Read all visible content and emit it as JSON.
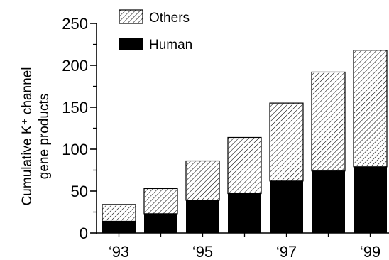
{
  "chart_data": {
    "type": "bar",
    "stacked": true,
    "x": [
      "1993",
      "1994",
      "1995",
      "1996",
      "1997",
      "1998",
      "1999"
    ],
    "tick_labels": [
      {
        "index": 0,
        "label": "‘93"
      },
      {
        "index": 2,
        "label": "‘95"
      },
      {
        "index": 4,
        "label": "‘97"
      },
      {
        "index": 6,
        "label": "‘99"
      }
    ],
    "series": [
      {
        "name": "Human",
        "values": [
          14,
          23,
          39,
          47,
          62,
          74,
          79
        ],
        "fill": "solid",
        "color": "#000000"
      },
      {
        "name": "Others",
        "values": [
          20,
          30,
          47,
          67,
          93,
          118,
          139
        ],
        "fill": "hatched",
        "color": "#000000"
      }
    ],
    "ylabel_lines": [
      "Cumulative K⁺ channel",
      "gene products"
    ],
    "ylim": [
      0,
      250
    ],
    "yticks": [
      0,
      50,
      100,
      150,
      200,
      250
    ],
    "legend": {
      "placement": "top-left",
      "entries": [
        "Others",
        "Human"
      ]
    },
    "grid": false
  }
}
